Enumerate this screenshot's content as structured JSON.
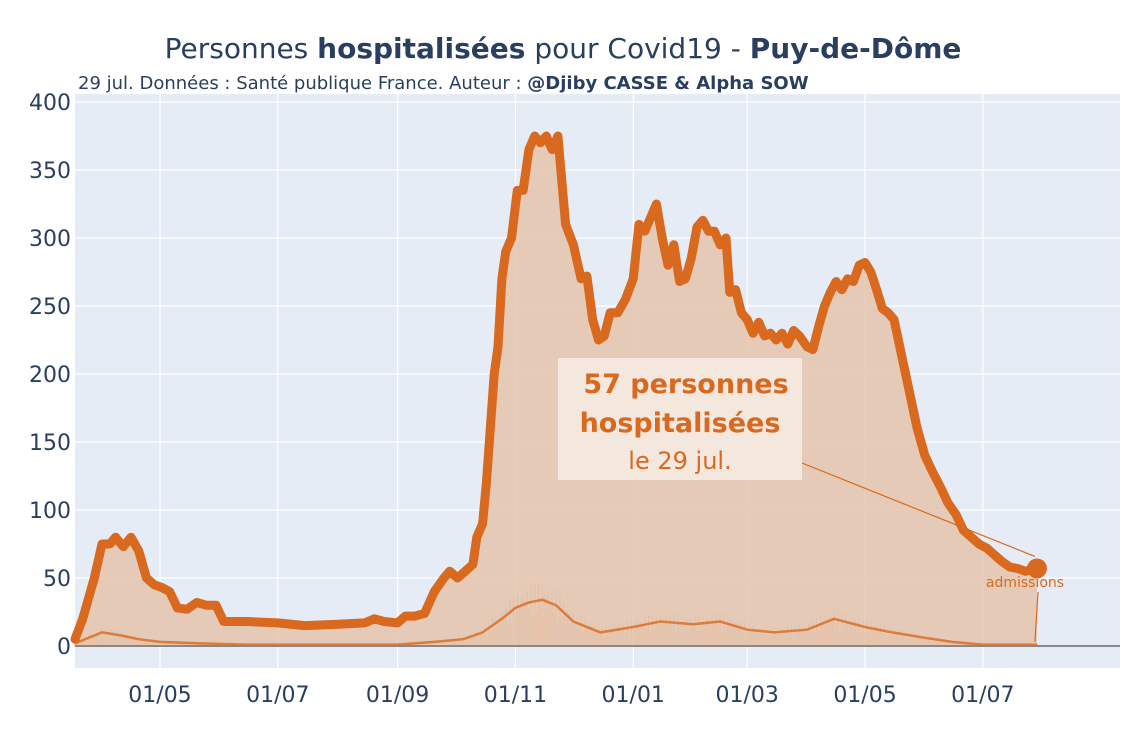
{
  "header": {
    "title_pre": "Personnes ",
    "title_bold": "hospitalisées",
    "title_mid": " pour Covid19 - ",
    "title_region": "Puy-de-Dôme",
    "subtitle_pre": "29 jul. Données : Santé publique France. Auteur : ",
    "subtitle_author": "@Djiby CASSE & Alpha SOW"
  },
  "annotation": {
    "line1": "57 personnes",
    "line2": "hospitalisées",
    "line3": "le 29 jul.",
    "admissions_label": "admissions"
  },
  "colors": {
    "accent": "#d8691e",
    "fill": "#e5c4ac",
    "plot_bg": "#e5ecf6",
    "grid": "#ffffff",
    "text": "#2a3f5f",
    "zero_line": "#888888"
  },
  "chart_data": {
    "type": "area",
    "title": "Personnes hospitalisées pour Covid19 - Puy-de-Dôme",
    "ylim": [
      0,
      400
    ],
    "yticks": [
      0,
      50,
      100,
      150,
      200,
      250,
      300,
      350,
      400
    ],
    "xrange": [
      "2020-03-18",
      "2021-09-10"
    ],
    "xticks": [
      {
        "date": "2020-05-01",
        "label": "01/05"
      },
      {
        "date": "2020-07-01",
        "label": "01/07"
      },
      {
        "date": "2020-09-01",
        "label": "01/09"
      },
      {
        "date": "2020-11-01",
        "label": "01/11"
      },
      {
        "date": "2021-01-01",
        "label": "01/01"
      },
      {
        "date": "2021-03-01",
        "label": "01/03"
      },
      {
        "date": "2021-05-01",
        "label": "01/05"
      },
      {
        "date": "2021-07-01",
        "label": "01/07"
      }
    ],
    "grid": true,
    "series": [
      {
        "name": "personnes hospitalisées",
        "points": [
          [
            "2020-03-18",
            5
          ],
          [
            "2020-03-22",
            20
          ],
          [
            "2020-03-28",
            50
          ],
          [
            "2020-04-01",
            75
          ],
          [
            "2020-04-05",
            75
          ],
          [
            "2020-04-08",
            80
          ],
          [
            "2020-04-12",
            73
          ],
          [
            "2020-04-16",
            80
          ],
          [
            "2020-04-20",
            70
          ],
          [
            "2020-04-24",
            50
          ],
          [
            "2020-04-28",
            45
          ],
          [
            "2020-05-02",
            43
          ],
          [
            "2020-05-06",
            40
          ],
          [
            "2020-05-10",
            28
          ],
          [
            "2020-05-15",
            27
          ],
          [
            "2020-05-20",
            32
          ],
          [
            "2020-05-25",
            30
          ],
          [
            "2020-05-30",
            30
          ],
          [
            "2020-06-03",
            18
          ],
          [
            "2020-06-15",
            18
          ],
          [
            "2020-07-01",
            17
          ],
          [
            "2020-07-15",
            15
          ],
          [
            "2020-08-01",
            16
          ],
          [
            "2020-08-15",
            17
          ],
          [
            "2020-08-20",
            20
          ],
          [
            "2020-08-25",
            18
          ],
          [
            "2020-09-01",
            17
          ],
          [
            "2020-09-05",
            22
          ],
          [
            "2020-09-10",
            22
          ],
          [
            "2020-09-15",
            24
          ],
          [
            "2020-09-20",
            40
          ],
          [
            "2020-09-25",
            50
          ],
          [
            "2020-09-28",
            55
          ],
          [
            "2020-10-02",
            50
          ],
          [
            "2020-10-06",
            55
          ],
          [
            "2020-10-10",
            60
          ],
          [
            "2020-10-12",
            80
          ],
          [
            "2020-10-15",
            90
          ],
          [
            "2020-10-17",
            120
          ],
          [
            "2020-10-19",
            160
          ],
          [
            "2020-10-21",
            200
          ],
          [
            "2020-10-23",
            220
          ],
          [
            "2020-10-25",
            270
          ],
          [
            "2020-10-27",
            290
          ],
          [
            "2020-10-30",
            300
          ],
          [
            "2020-11-02",
            335
          ],
          [
            "2020-11-05",
            335
          ],
          [
            "2020-11-08",
            365
          ],
          [
            "2020-11-11",
            375
          ],
          [
            "2020-11-14",
            370
          ],
          [
            "2020-11-17",
            375
          ],
          [
            "2020-11-20",
            365
          ],
          [
            "2020-11-23",
            375
          ],
          [
            "2020-11-27",
            310
          ],
          [
            "2020-12-01",
            295
          ],
          [
            "2020-12-05",
            270
          ],
          [
            "2020-12-08",
            272
          ],
          [
            "2020-12-11",
            240
          ],
          [
            "2020-12-14",
            225
          ],
          [
            "2020-12-17",
            228
          ],
          [
            "2020-12-20",
            245
          ],
          [
            "2020-12-24",
            245
          ],
          [
            "2020-12-28",
            255
          ],
          [
            "2021-01-01",
            270
          ],
          [
            "2021-01-04",
            310
          ],
          [
            "2021-01-07",
            305
          ],
          [
            "2021-01-10",
            315
          ],
          [
            "2021-01-13",
            325
          ],
          [
            "2021-01-16",
            300
          ],
          [
            "2021-01-19",
            280
          ],
          [
            "2021-01-22",
            295
          ],
          [
            "2021-01-25",
            268
          ],
          [
            "2021-01-28",
            270
          ],
          [
            "2021-01-31",
            285
          ],
          [
            "2021-02-03",
            308
          ],
          [
            "2021-02-06",
            313
          ],
          [
            "2021-02-09",
            305
          ],
          [
            "2021-02-12",
            305
          ],
          [
            "2021-02-15",
            295
          ],
          [
            "2021-02-18",
            300
          ],
          [
            "2021-02-20",
            260
          ],
          [
            "2021-02-23",
            262
          ],
          [
            "2021-02-26",
            245
          ],
          [
            "2021-03-01",
            240
          ],
          [
            "2021-03-04",
            230
          ],
          [
            "2021-03-07",
            238
          ],
          [
            "2021-03-10",
            228
          ],
          [
            "2021-03-13",
            230
          ],
          [
            "2021-03-16",
            225
          ],
          [
            "2021-03-19",
            230
          ],
          [
            "2021-03-22",
            222
          ],
          [
            "2021-03-25",
            232
          ],
          [
            "2021-03-28",
            228
          ],
          [
            "2021-04-01",
            220
          ],
          [
            "2021-04-04",
            218
          ],
          [
            "2021-04-07",
            235
          ],
          [
            "2021-04-10",
            250
          ],
          [
            "2021-04-13",
            260
          ],
          [
            "2021-04-16",
            268
          ],
          [
            "2021-04-19",
            262
          ],
          [
            "2021-04-22",
            270
          ],
          [
            "2021-04-25",
            268
          ],
          [
            "2021-04-28",
            280
          ],
          [
            "2021-05-01",
            282
          ],
          [
            "2021-05-04",
            275
          ],
          [
            "2021-05-07",
            262
          ],
          [
            "2021-05-10",
            248
          ],
          [
            "2021-05-13",
            245
          ],
          [
            "2021-05-16",
            240
          ],
          [
            "2021-05-19",
            220
          ],
          [
            "2021-05-22",
            200
          ],
          [
            "2021-05-25",
            180
          ],
          [
            "2021-05-28",
            160
          ],
          [
            "2021-06-01",
            140
          ],
          [
            "2021-06-05",
            128
          ],
          [
            "2021-06-09",
            117
          ],
          [
            "2021-06-13",
            105
          ],
          [
            "2021-06-17",
            97
          ],
          [
            "2021-06-21",
            85
          ],
          [
            "2021-06-25",
            80
          ],
          [
            "2021-06-29",
            75
          ],
          [
            "2021-07-03",
            72
          ],
          [
            "2021-07-07",
            67
          ],
          [
            "2021-07-11",
            62
          ],
          [
            "2021-07-15",
            58
          ],
          [
            "2021-07-19",
            57
          ],
          [
            "2021-07-23",
            55
          ],
          [
            "2021-07-26",
            56
          ],
          [
            "2021-07-29",
            57
          ]
        ]
      },
      {
        "name": "admissions",
        "points": [
          [
            "2020-03-18",
            2
          ],
          [
            "2020-03-25",
            6
          ],
          [
            "2020-04-01",
            10
          ],
          [
            "2020-04-10",
            8
          ],
          [
            "2020-04-20",
            5
          ],
          [
            "2020-05-01",
            3
          ],
          [
            "2020-05-20",
            2
          ],
          [
            "2020-06-15",
            1
          ],
          [
            "2020-08-01",
            1
          ],
          [
            "2020-09-01",
            1
          ],
          [
            "2020-09-20",
            3
          ],
          [
            "2020-10-05",
            5
          ],
          [
            "2020-10-15",
            10
          ],
          [
            "2020-10-25",
            20
          ],
          [
            "2020-11-01",
            28
          ],
          [
            "2020-11-08",
            32
          ],
          [
            "2020-11-15",
            34
          ],
          [
            "2020-11-22",
            30
          ],
          [
            "2020-12-01",
            18
          ],
          [
            "2020-12-15",
            10
          ],
          [
            "2021-01-01",
            14
          ],
          [
            "2021-01-15",
            18
          ],
          [
            "2021-02-01",
            16
          ],
          [
            "2021-02-15",
            18
          ],
          [
            "2021-03-01",
            12
          ],
          [
            "2021-03-15",
            10
          ],
          [
            "2021-04-01",
            12
          ],
          [
            "2021-04-15",
            20
          ],
          [
            "2021-05-01",
            14
          ],
          [
            "2021-05-15",
            10
          ],
          [
            "2021-06-01",
            6
          ],
          [
            "2021-06-15",
            3
          ],
          [
            "2021-07-01",
            1
          ],
          [
            "2021-07-29",
            1
          ]
        ]
      }
    ]
  }
}
